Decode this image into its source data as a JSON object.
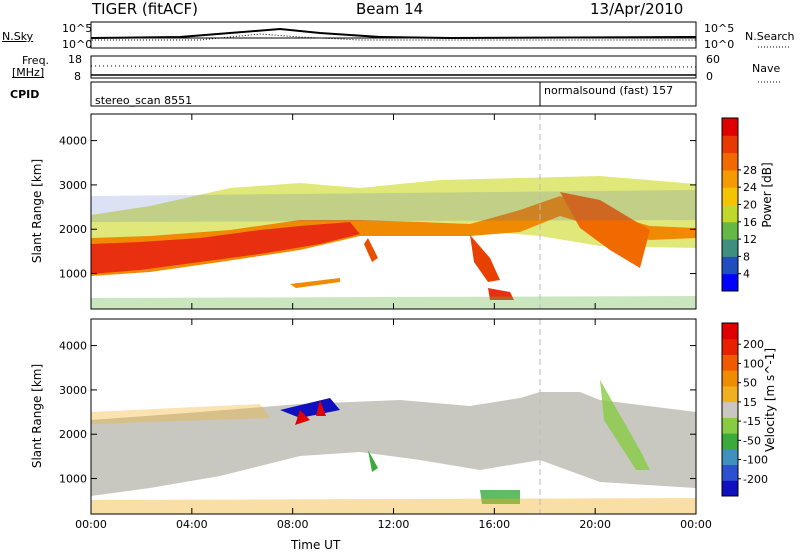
{
  "header": {
    "title": "TIGER (fitACF)",
    "beam": "Beam 14",
    "date": "13/Apr/2010"
  },
  "strips": {
    "nsky_label": "N.Sky",
    "nsky_ticks": [
      "10^5",
      "10^0"
    ],
    "nsearch_label": "N.Search",
    "freq_label": "Freq.",
    "freq_unit": "[MHz]",
    "freq_ticks": [
      "18",
      "8"
    ],
    "nave_label": "Nave",
    "nave_ticks": [
      "60",
      "0"
    ],
    "cpid_label": "CPID",
    "cpid_left": "stereo_scan 8551",
    "cpid_right": "normalsound (fast) 157"
  },
  "chart_data": [
    {
      "type": "heatmap",
      "panel": "power",
      "ylabel": "Slant Range [km]",
      "xlabel": "Time UT",
      "x_ticks": [
        "00:00",
        "04:00",
        "08:00",
        "12:00",
        "16:00",
        "20:00",
        "00:00"
      ],
      "y_ticks": [
        1000,
        2000,
        3000,
        4000
      ],
      "ylim": [
        200,
        4600
      ],
      "xlim_hours": [
        0,
        24
      ],
      "colorbar": {
        "label": "Power [dB]",
        "ticks": [
          4,
          8,
          12,
          16,
          20,
          24,
          28
        ],
        "colors": [
          "#0000ff",
          "#1f4fbf",
          "#3f8f7f",
          "#66b844",
          "#bfd82a",
          "#f5c400",
          "#f59a00",
          "#f06a00",
          "#e83a00",
          "#e00000"
        ]
      }
    },
    {
      "type": "heatmap",
      "panel": "velocity",
      "ylabel": "Slant Range [km]",
      "xlabel": "Time UT",
      "x_ticks": [
        "00:00",
        "04:00",
        "08:00",
        "12:00",
        "16:00",
        "20:00",
        "00:00"
      ],
      "y_ticks": [
        1000,
        2000,
        3000,
        4000
      ],
      "ylim": [
        200,
        4600
      ],
      "xlim_hours": [
        0,
        24
      ],
      "colorbar": {
        "label": "Velocity [m s^-1]",
        "ticks": [
          200,
          100,
          50,
          15,
          -15,
          -50,
          -100,
          -200
        ],
        "colors": [
          "#1010c0",
          "#2c50d0",
          "#3f8fbf",
          "#3aaa3a",
          "#88cc44",
          "#c8c8c0",
          "#f0b020",
          "#f08c00",
          "#f05a00",
          "#e82000",
          "#e00000"
        ]
      }
    }
  ]
}
